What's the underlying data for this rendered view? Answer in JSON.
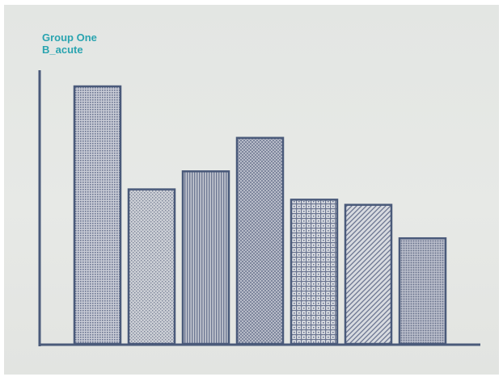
{
  "chart_data": {
    "type": "bar",
    "title": "Group One",
    "subtitle": "B_acute",
    "categories": [
      "",
      "",
      "",
      "",
      "",
      "",
      ""
    ],
    "values": [
      100,
      60,
      67,
      80,
      56,
      54,
      41
    ],
    "ylim": [
      0,
      100
    ],
    "xlabel": "",
    "ylabel": "",
    "grid": false,
    "legend": "none",
    "bar_fills": [
      "fine-dots",
      "fine-speckle",
      "vertical-stripes",
      "crosshatch-dense",
      "grid-checker",
      "diagonal-stripes",
      "dots-coarse"
    ]
  },
  "colors": {
    "title": "#2aa4b0",
    "axis": "#4a5a7a",
    "bar_outline": "#4a5a7a",
    "bar_ink": "#6a7490",
    "background": "#e5e7e4"
  }
}
